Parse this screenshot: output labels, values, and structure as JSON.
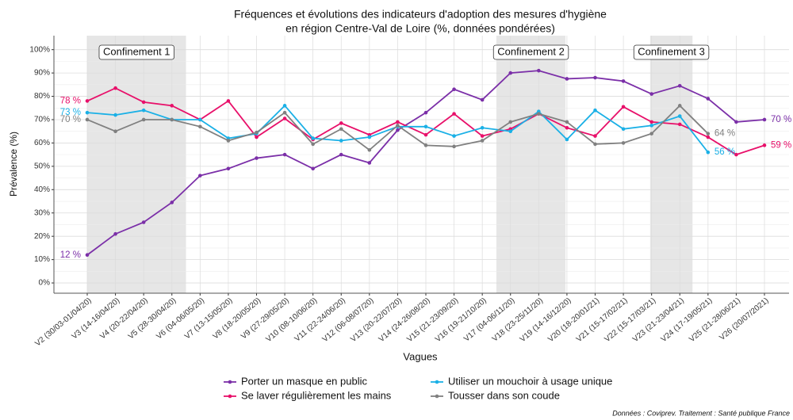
{
  "chart_data": {
    "type": "line",
    "title": [
      "Fréquences et évolutions des indicateurs d'adoption des mesures d'hygiène",
      "en région Centre-Val de Loire (%, données pondérées)"
    ],
    "x_label": "Vagues",
    "y_label": "Prévalence (%)",
    "caption": "Données : Coviprev. Traitement : Santé publique France",
    "categories": [
      "V2 (30/03-01/04/20)",
      "V3 (14-16/04/20)",
      "V4 (20-22/04/20)",
      "V5 (28-30/04/20)",
      "V6 (04-06/05/20)",
      "V7 (13-15/05/20)",
      "V8 (18-20/05/20)",
      "V9 (27-29/05/20)",
      "V10 (08-10/06/20)",
      "V11 (22-24/06/20)",
      "V12 (06-08/07/20)",
      "V13 (20-22/07/20)",
      "V14 (24-26/08/20)",
      "V15 (21-23/09/20)",
      "V16 (19-21/10/20)",
      "V17 (04-06/11/20)",
      "V18 (23-25/11/20)",
      "V19 (14-16/12/20)",
      "V20 (18-20/01/21)",
      "V21 (15-17/02/21)",
      "V22 (15-17/03/21)",
      "V23 (21-23/04/21)",
      "V24 (17-19/05/21)",
      "V25 (21-28/06/21)",
      "V26 (20/07/2021)"
    ],
    "shaded_periods": [
      {
        "label": "Confinement 1",
        "start": 0,
        "end": 3.5
      },
      {
        "label": "Confinement 2",
        "start": 14.5,
        "end": 16.95
      },
      {
        "label": "Confinement 3",
        "start": 19.95,
        "end": 21.45
      }
    ],
    "series": [
      {
        "name": "Porter un masque en public",
        "color": "#7b2fa8",
        "values": [
          12,
          21,
          26,
          34.5,
          46,
          49,
          53.5,
          55,
          49,
          55,
          51.5,
          65.5,
          73,
          83,
          78.5,
          90,
          91,
          87.5,
          88,
          86.5,
          81,
          84.5,
          79,
          69,
          70
        ],
        "value_labels": [
          "12 %",
          null,
          null,
          null,
          null,
          null,
          null,
          null,
          null,
          null,
          null,
          null,
          null,
          null,
          null,
          null,
          null,
          null,
          null,
          null,
          null,
          null,
          null,
          null,
          "70 %"
        ]
      },
      {
        "name": "Se laver régulièrement les mains",
        "color": "#e8106a",
        "values": [
          78,
          83.5,
          77.5,
          76,
          70,
          78,
          62.5,
          70.5,
          61.5,
          68.5,
          63.5,
          69,
          63.5,
          72.5,
          63,
          66,
          72.5,
          66.5,
          63,
          75.5,
          69,
          68,
          62.5,
          55,
          59
        ],
        "value_labels": [
          "78 %",
          null,
          null,
          null,
          null,
          null,
          null,
          null,
          null,
          null,
          null,
          null,
          null,
          null,
          null,
          null,
          null,
          null,
          null,
          null,
          null,
          null,
          null,
          null,
          "59 %"
        ]
      },
      {
        "name": "Utiliser un mouchoir à usage unique",
        "color": "#1ab0e6",
        "values": [
          73,
          72,
          74,
          70,
          70,
          62,
          64,
          76,
          62,
          61,
          62.5,
          67,
          67,
          63,
          66.5,
          65,
          73.5,
          61.5,
          74,
          66,
          67.5,
          71.5,
          56,
          null,
          null
        ],
        "value_labels": [
          "73 %",
          null,
          null,
          null,
          null,
          null,
          null,
          null,
          null,
          null,
          null,
          null,
          null,
          null,
          null,
          null,
          null,
          null,
          null,
          null,
          null,
          null,
          "56 %",
          null,
          null
        ]
      },
      {
        "name": "Tousser dans son coude",
        "color": "#808080",
        "values": [
          70,
          65,
          70,
          70,
          67,
          61,
          64.5,
          73,
          59.5,
          66,
          57,
          67.5,
          59,
          58.5,
          61,
          69,
          72.5,
          69,
          59.5,
          60,
          64,
          76,
          64,
          null,
          null
        ],
        "value_labels": [
          "70 %",
          null,
          null,
          null,
          null,
          null,
          null,
          null,
          null,
          null,
          null,
          null,
          null,
          null,
          null,
          null,
          null,
          null,
          null,
          null,
          null,
          null,
          "64 %",
          null,
          null
        ]
      }
    ],
    "ylim": [
      -4.4,
      106
    ],
    "yticks": [
      {
        "value": 0,
        "label": "0%"
      },
      {
        "value": 10,
        "label": "10%"
      },
      {
        "value": 20,
        "label": "20%"
      },
      {
        "value": 30,
        "label": "30%"
      },
      {
        "value": 40,
        "label": "40%"
      },
      {
        "value": 50,
        "label": "50%"
      },
      {
        "value": 60,
        "label": "60%"
      },
      {
        "value": 70,
        "label": "70%"
      },
      {
        "value": 80,
        "label": "80%"
      },
      {
        "value": 90,
        "label": "90%"
      },
      {
        "value": 100,
        "label": "100%"
      }
    ],
    "grid": true,
    "legend": "bottom"
  }
}
